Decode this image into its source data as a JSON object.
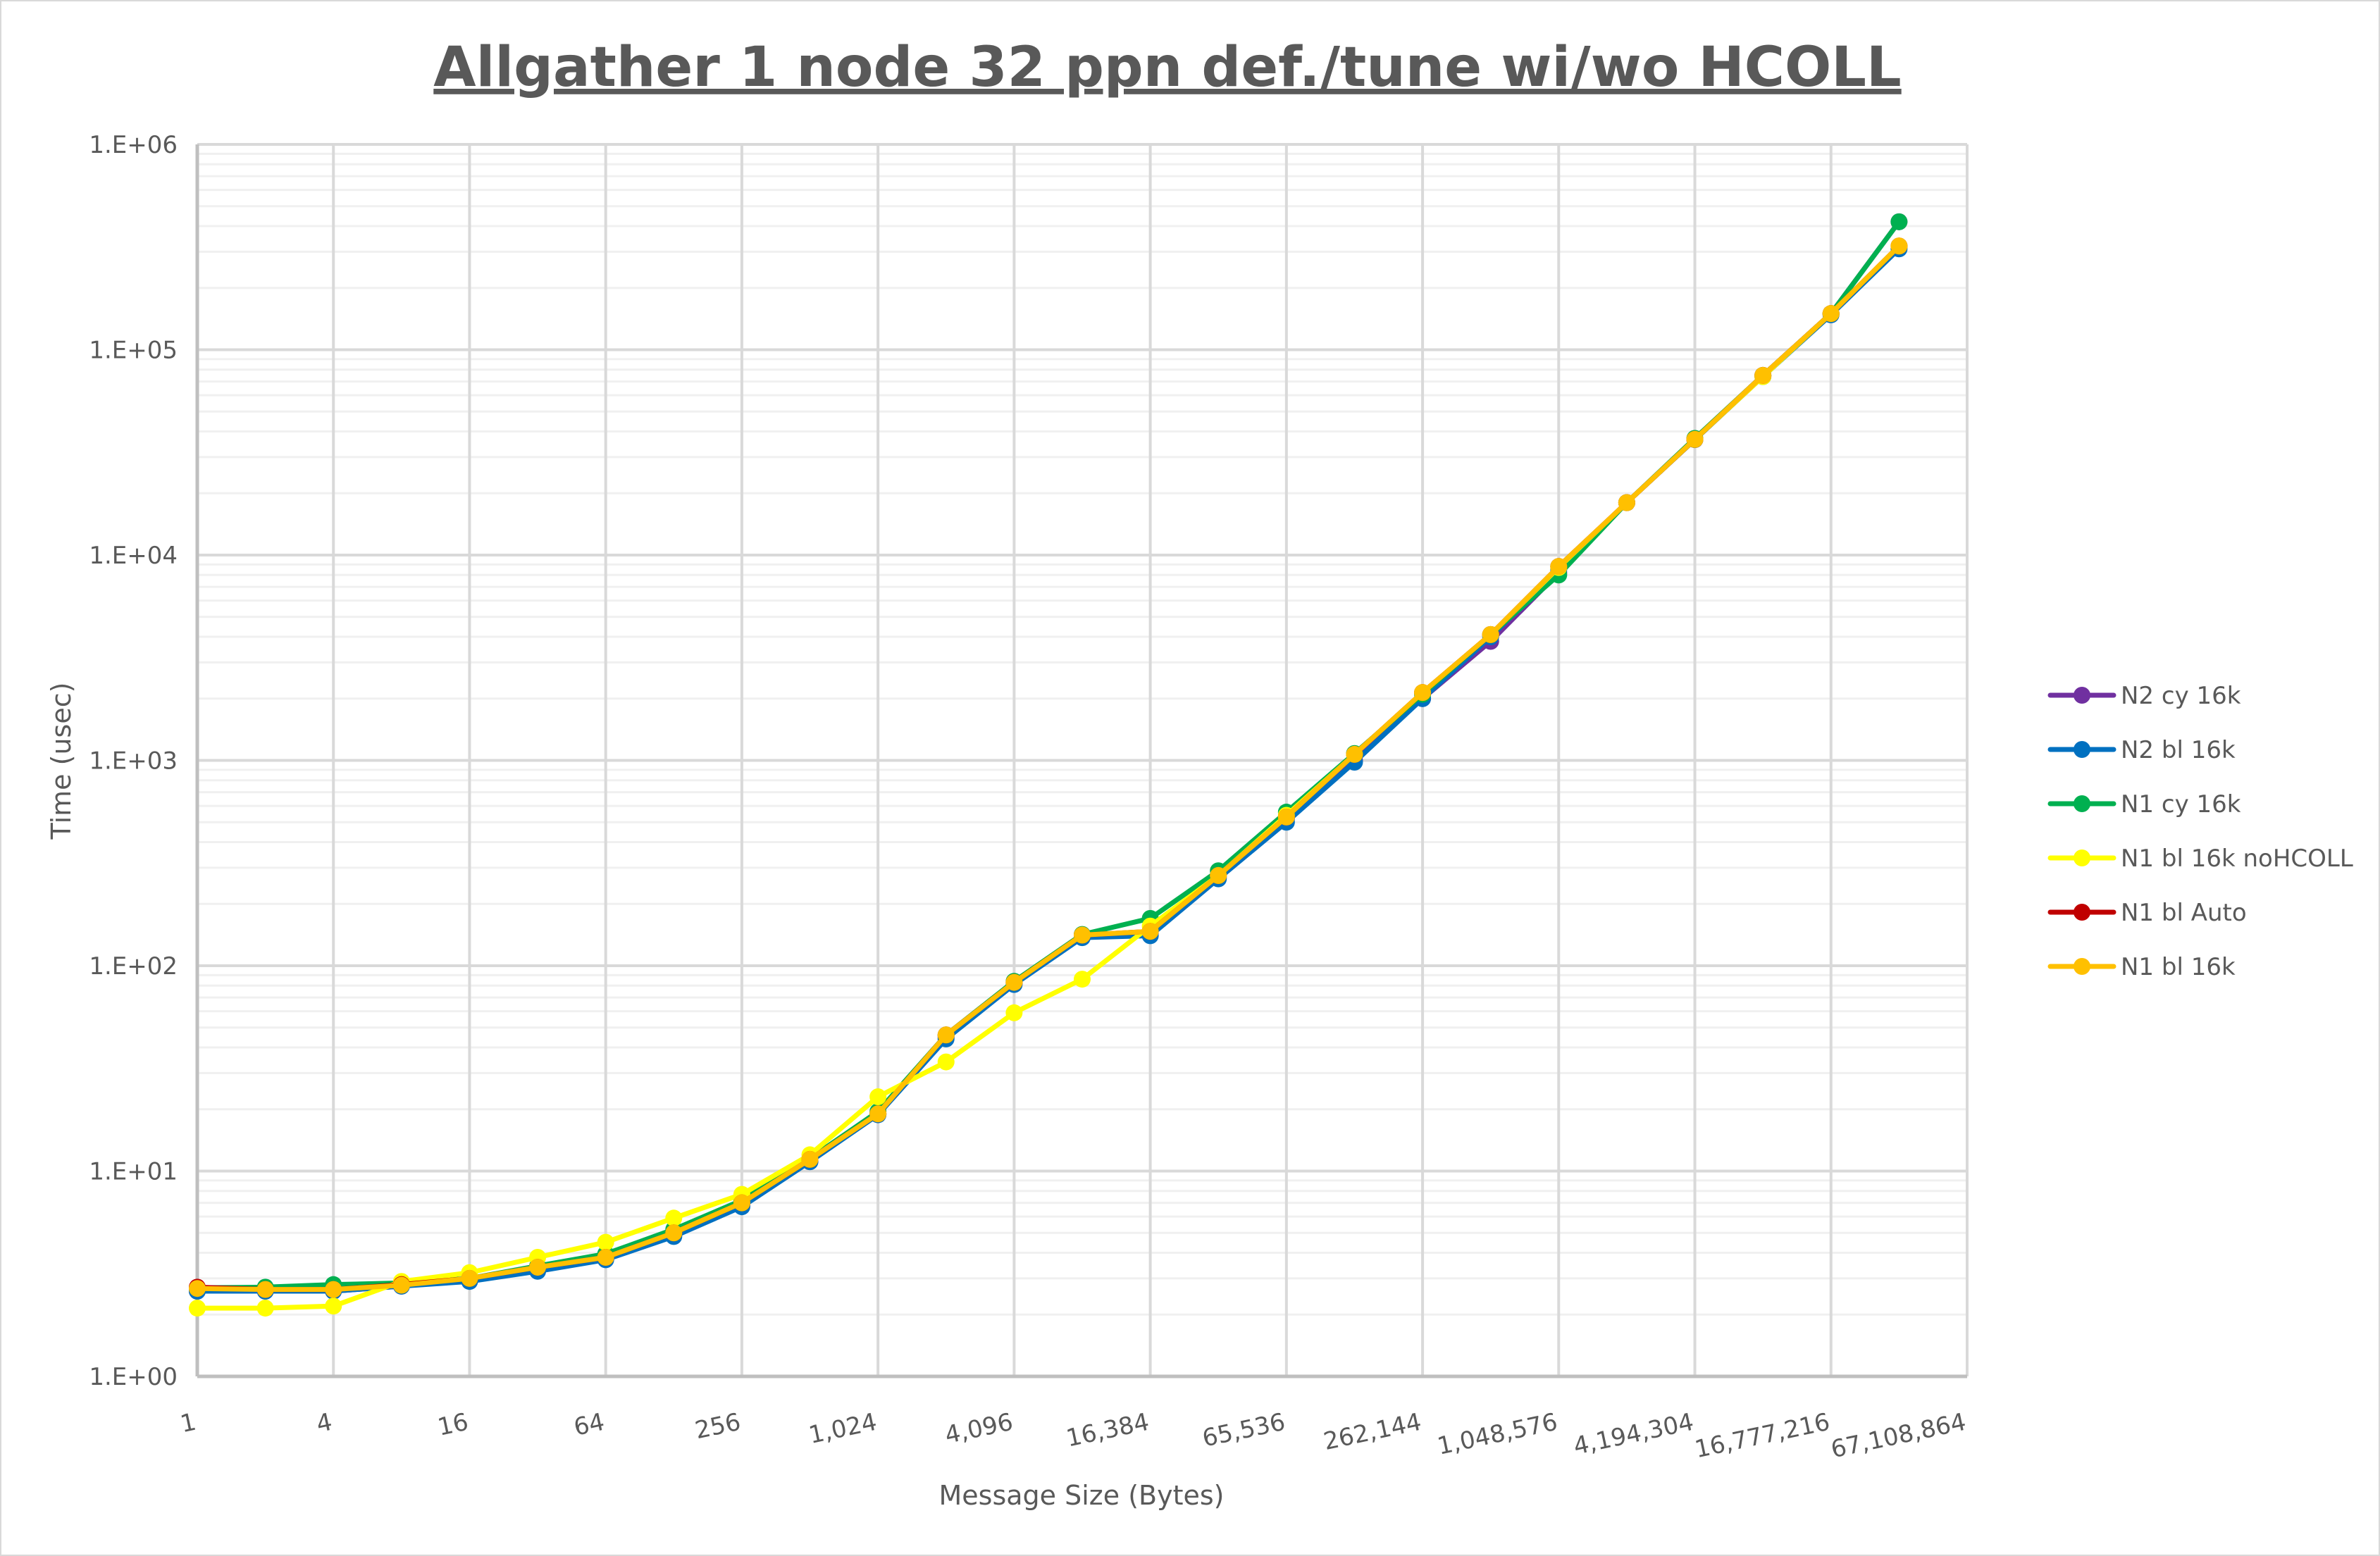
{
  "chart_data": {
    "type": "line",
    "title": "Allgather 1 node 32 ppn def./tune wi/wo HCOLL",
    "xlabel": "Message Size (Bytes)",
    "ylabel": "Time (usec)",
    "yscale": "log",
    "ylim": [
      1,
      1000000
    ],
    "y_ticks": [
      "1.E+00",
      "1.E+01",
      "1.E+02",
      "1.E+03",
      "1.E+04",
      "1.E+05",
      "1.E+06"
    ],
    "x_ticks": [
      "1",
      "4",
      "16",
      "64",
      "256",
      "1,024",
      "4,096",
      "16,384",
      "65,536",
      "262,144",
      "1,048,576",
      "4,194,304",
      "16,777,216",
      "67,108,864"
    ],
    "x": [
      1,
      2,
      4,
      8,
      16,
      32,
      64,
      128,
      256,
      512,
      1024,
      2048,
      4096,
      8192,
      16384,
      32768,
      65536,
      131072,
      262144,
      524288,
      1048576,
      2097152,
      4194304,
      8388608,
      16777216,
      33554432
    ],
    "grid": true,
    "legend_position": "right",
    "series": [
      {
        "name": "N2 cy 16k",
        "color": "#7030a0",
        "values": [
          2.6,
          2.6,
          2.6,
          2.75,
          2.95,
          3.3,
          3.75,
          4.9,
          6.8,
          11.2,
          19,
          45,
          82,
          138,
          145,
          270,
          520,
          1000,
          2000,
          3800,
          8200,
          18000,
          36500,
          75000,
          150000,
          420000
        ]
      },
      {
        "name": "N2 bl 16k",
        "color": "#0070c0",
        "values": [
          2.6,
          2.6,
          2.6,
          2.75,
          2.9,
          3.25,
          3.7,
          4.8,
          6.7,
          11.1,
          18.8,
          44,
          81,
          137,
          140,
          265,
          500,
          980,
          2000,
          4000,
          8500,
          18000,
          36500,
          74000,
          148000,
          310000
        ]
      },
      {
        "name": "N1 cy 16k",
        "color": "#00b050",
        "values": [
          2.7,
          2.72,
          2.8,
          2.85,
          3.0,
          3.45,
          3.95,
          5.2,
          7.2,
          11.5,
          19.5,
          46,
          84,
          142,
          170,
          290,
          560,
          1080,
          2100,
          4100,
          8000,
          18000,
          37000,
          75000,
          150000,
          420000
        ]
      },
      {
        "name": "N1 bl 16k noHCOLL",
        "color": "#ffff00",
        "values": [
          2.15,
          2.15,
          2.2,
          2.9,
          3.2,
          3.8,
          4.5,
          5.9,
          7.7,
          12,
          23,
          34,
          59,
          86,
          156,
          275,
          540,
          1070,
          2140,
          4100,
          8700,
          18000,
          36600,
          74000,
          150000,
          320000
        ]
      },
      {
        "name": "N1 bl Auto",
        "color": "#c00000",
        "values": [
          2.72,
          2.65,
          2.65,
          2.8,
          3.0,
          3.4,
          3.8,
          5.0,
          7.0,
          11.4,
          19,
          46,
          83,
          141,
          147,
          275,
          530,
          1070,
          2140,
          4100,
          8800,
          18000,
          36600,
          75000,
          150000,
          320000
        ]
      },
      {
        "name": "N1 bl 16k",
        "color": "#ffc000",
        "values": [
          2.68,
          2.65,
          2.65,
          2.78,
          3.0,
          3.4,
          3.8,
          5.0,
          7.0,
          11.4,
          19,
          46,
          83,
          141,
          147,
          275,
          530,
          1070,
          2140,
          4100,
          8800,
          18000,
          36600,
          75000,
          150000,
          320000
        ]
      }
    ]
  }
}
